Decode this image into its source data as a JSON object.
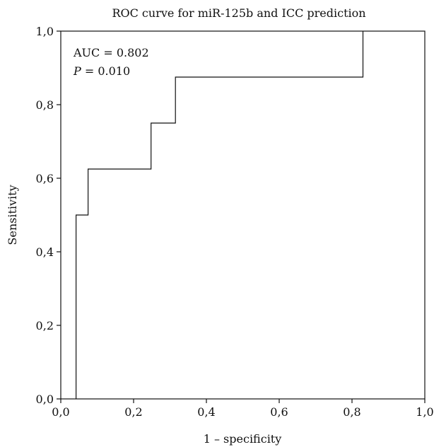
{
  "chart_data": {
    "type": "line",
    "title": "ROC curve for miR-125b and ICC prediction",
    "xlabel": "1 – specificity",
    "ylabel": "Sensitivity",
    "xlim": [
      0,
      1
    ],
    "ylim": [
      0,
      1
    ],
    "x_ticks": [
      0,
      0.2,
      0.4,
      0.6,
      0.8,
      1.0
    ],
    "y_ticks": [
      0,
      0.2,
      0.4,
      0.6,
      0.8,
      1.0
    ],
    "x_tick_labels": [
      "0,0",
      "0,2",
      "0,4",
      "0,6",
      "0,8",
      "1,0"
    ],
    "y_tick_labels": [
      "0,0",
      "0,2",
      "0,4",
      "0,6",
      "0,8",
      "1,0"
    ],
    "grid": false,
    "legend": "none",
    "series": [
      {
        "step": "post",
        "x": [
          0.042,
          0.042,
          0.075,
          0.075,
          0.248,
          0.248,
          0.315,
          0.315,
          0.83,
          0.83
        ],
        "y": [
          0.0,
          0.5,
          0.5,
          0.625,
          0.625,
          0.75,
          0.75,
          0.875,
          0.875,
          1.0
        ]
      }
    ],
    "annotations": {
      "auc": "AUC = 0.802",
      "p_symbol": "P",
      "p_value": " = 0.010"
    }
  }
}
